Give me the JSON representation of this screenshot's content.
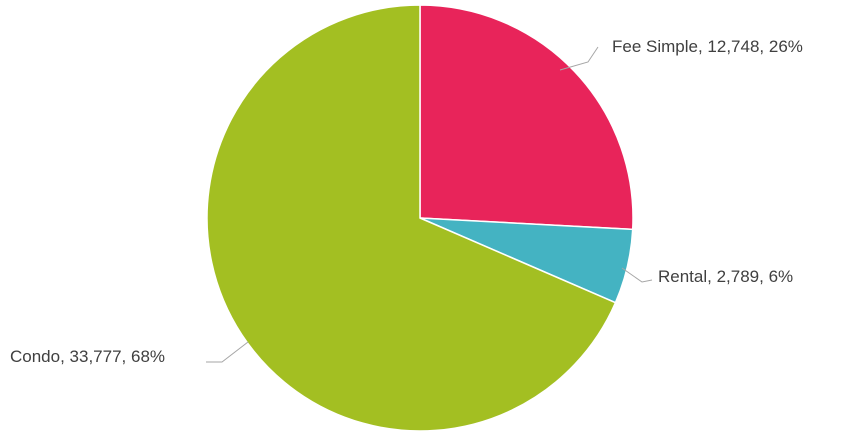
{
  "chart_data": {
    "type": "pie",
    "title": "",
    "slices": [
      {
        "label": "Fee Simple",
        "value": 12748,
        "value_label": "12,748",
        "percent_label": "26%",
        "color": "#e8245a"
      },
      {
        "label": "Rental",
        "value": 2789,
        "value_label": "2,789",
        "percent_label": "6%",
        "color": "#44b3c2"
      },
      {
        "label": "Condo",
        "value": 33777,
        "value_label": "33,777",
        "percent_label": "68%",
        "color": "#a3bf22"
      }
    ],
    "start_angle": "12 o'clock",
    "direction": "clockwise",
    "legend": "none",
    "data_labels": "category, value, percent"
  }
}
